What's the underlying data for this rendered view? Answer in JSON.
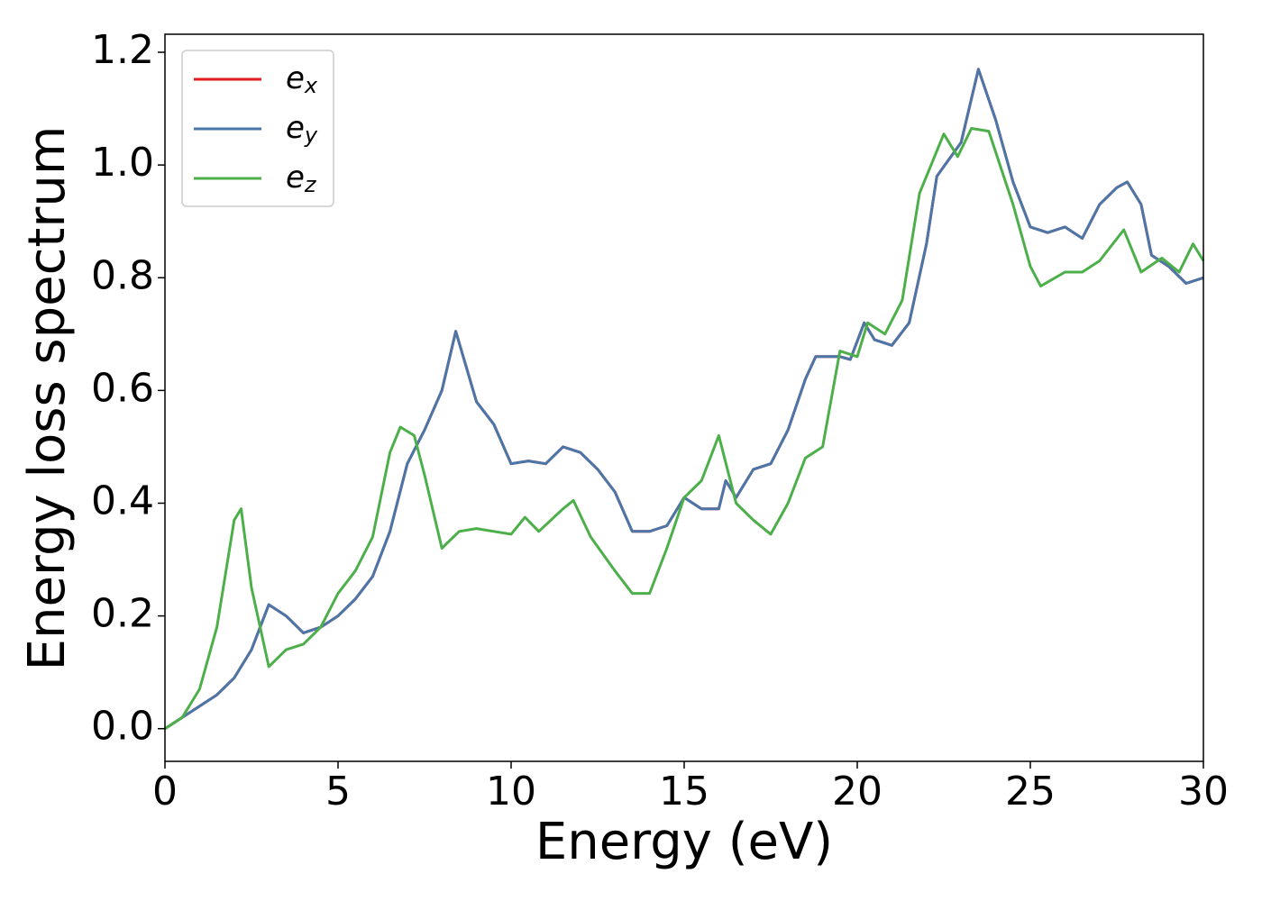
{
  "chart_data": {
    "type": "line",
    "xlabel": "Energy (eV)",
    "ylabel": "Energy loss spectrum",
    "xlim": [
      0,
      30
    ],
    "ylim": [
      -0.058,
      1.232
    ],
    "xticks": [
      0,
      5,
      10,
      15,
      20,
      25,
      30
    ],
    "yticks": [
      {
        "value": 0,
        "label": "0.0"
      },
      0.2,
      0.4,
      0.6,
      0.8,
      {
        "value": 1,
        "label": "1.0"
      },
      1.2
    ],
    "legend": "upper left",
    "series": [
      {
        "name": "ex",
        "color": "#e41a1c",
        "x": [
          0,
          0.5,
          1,
          1.5,
          2,
          2.5,
          3,
          3.5,
          4,
          4.5,
          5,
          5.5,
          6,
          6.5,
          7,
          7.5,
          8,
          8.4,
          9,
          9.5,
          10,
          10.5,
          11,
          11.5,
          12,
          12.5,
          13,
          13.5,
          14,
          14.5,
          15,
          15.5,
          16,
          16.2,
          16.5,
          17,
          17.5,
          18,
          18.5,
          18.8,
          19,
          19.5,
          19.8,
          20.2,
          20.5,
          21,
          21.5,
          22,
          22.3,
          23,
          23.5,
          24,
          24.5,
          25,
          25.5,
          26,
          26.5,
          27,
          27.5,
          27.8,
          28.2,
          28.5,
          29,
          29.5,
          30
        ],
        "values": [
          0,
          0.02,
          0.04,
          0.06,
          0.09,
          0.14,
          0.22,
          0.2,
          0.17,
          0.18,
          0.2,
          0.23,
          0.27,
          0.35,
          0.47,
          0.53,
          0.6,
          0.705,
          0.58,
          0.54,
          0.47,
          0.475,
          0.47,
          0.5,
          0.49,
          0.46,
          0.42,
          0.35,
          0.35,
          0.36,
          0.41,
          0.39,
          0.39,
          0.44,
          0.41,
          0.46,
          0.47,
          0.53,
          0.62,
          0.66,
          0.66,
          0.66,
          0.655,
          0.72,
          0.69,
          0.68,
          0.72,
          0.86,
          0.98,
          1.04,
          1.17,
          1.08,
          0.97,
          0.89,
          0.88,
          0.89,
          0.87,
          0.93,
          0.96,
          0.97,
          0.93,
          0.84,
          0.82,
          0.79,
          0.8
        ]
      },
      {
        "name": "ey",
        "color": "#4a76a8",
        "x": [
          0,
          0.5,
          1,
          1.5,
          2,
          2.5,
          3,
          3.5,
          4,
          4.5,
          5,
          5.5,
          6,
          6.5,
          7,
          7.5,
          8,
          8.4,
          9,
          9.5,
          10,
          10.5,
          11,
          11.5,
          12,
          12.5,
          13,
          13.5,
          14,
          14.5,
          15,
          15.5,
          16,
          16.2,
          16.5,
          17,
          17.5,
          18,
          18.5,
          18.8,
          19,
          19.5,
          19.8,
          20.2,
          20.5,
          21,
          21.5,
          22,
          22.3,
          23,
          23.5,
          24,
          24.5,
          25,
          25.5,
          26,
          26.5,
          27,
          27.5,
          27.8,
          28.2,
          28.5,
          29,
          29.5,
          30
        ],
        "values": [
          0,
          0.02,
          0.04,
          0.06,
          0.09,
          0.14,
          0.22,
          0.2,
          0.17,
          0.18,
          0.2,
          0.23,
          0.27,
          0.35,
          0.47,
          0.53,
          0.6,
          0.705,
          0.58,
          0.54,
          0.47,
          0.475,
          0.47,
          0.5,
          0.49,
          0.46,
          0.42,
          0.35,
          0.35,
          0.36,
          0.41,
          0.39,
          0.39,
          0.44,
          0.41,
          0.46,
          0.47,
          0.53,
          0.62,
          0.66,
          0.66,
          0.66,
          0.655,
          0.72,
          0.69,
          0.68,
          0.72,
          0.86,
          0.98,
          1.04,
          1.17,
          1.08,
          0.97,
          0.89,
          0.88,
          0.89,
          0.87,
          0.93,
          0.96,
          0.97,
          0.93,
          0.84,
          0.82,
          0.79,
          0.8
        ]
      },
      {
        "name": "ez",
        "color": "#4daf4a",
        "x": [
          0,
          0.5,
          1,
          1.5,
          2,
          2.2,
          2.5,
          3,
          3.5,
          4,
          4.5,
          5,
          5.5,
          6,
          6.5,
          6.8,
          7.2,
          7.5,
          8,
          8.5,
          9,
          9.5,
          10,
          10.4,
          10.8,
          11.5,
          11.8,
          12.3,
          13,
          13.5,
          14,
          14.5,
          15,
          15.5,
          16,
          16.5,
          17,
          17.5,
          18,
          18.5,
          19,
          19.5,
          20,
          20.3,
          20.8,
          21.3,
          21.8,
          22.5,
          22.9,
          23.3,
          23.8,
          24.5,
          25,
          25.3,
          26,
          26.5,
          27,
          27.7,
          28.2,
          28.8,
          29.3,
          29.7,
          30
        ],
        "values": [
          0,
          0.02,
          0.07,
          0.18,
          0.37,
          0.39,
          0.25,
          0.11,
          0.14,
          0.15,
          0.18,
          0.24,
          0.28,
          0.34,
          0.49,
          0.535,
          0.52,
          0.45,
          0.32,
          0.35,
          0.355,
          0.35,
          0.345,
          0.375,
          0.35,
          0.39,
          0.405,
          0.34,
          0.28,
          0.24,
          0.24,
          0.32,
          0.41,
          0.44,
          0.52,
          0.4,
          0.37,
          0.345,
          0.4,
          0.48,
          0.5,
          0.67,
          0.66,
          0.72,
          0.7,
          0.76,
          0.95,
          1.055,
          1.015,
          1.065,
          1.06,
          0.93,
          0.82,
          0.785,
          0.81,
          0.81,
          0.83,
          0.885,
          0.81,
          0.835,
          0.81,
          0.86,
          0.83
        ]
      }
    ]
  }
}
